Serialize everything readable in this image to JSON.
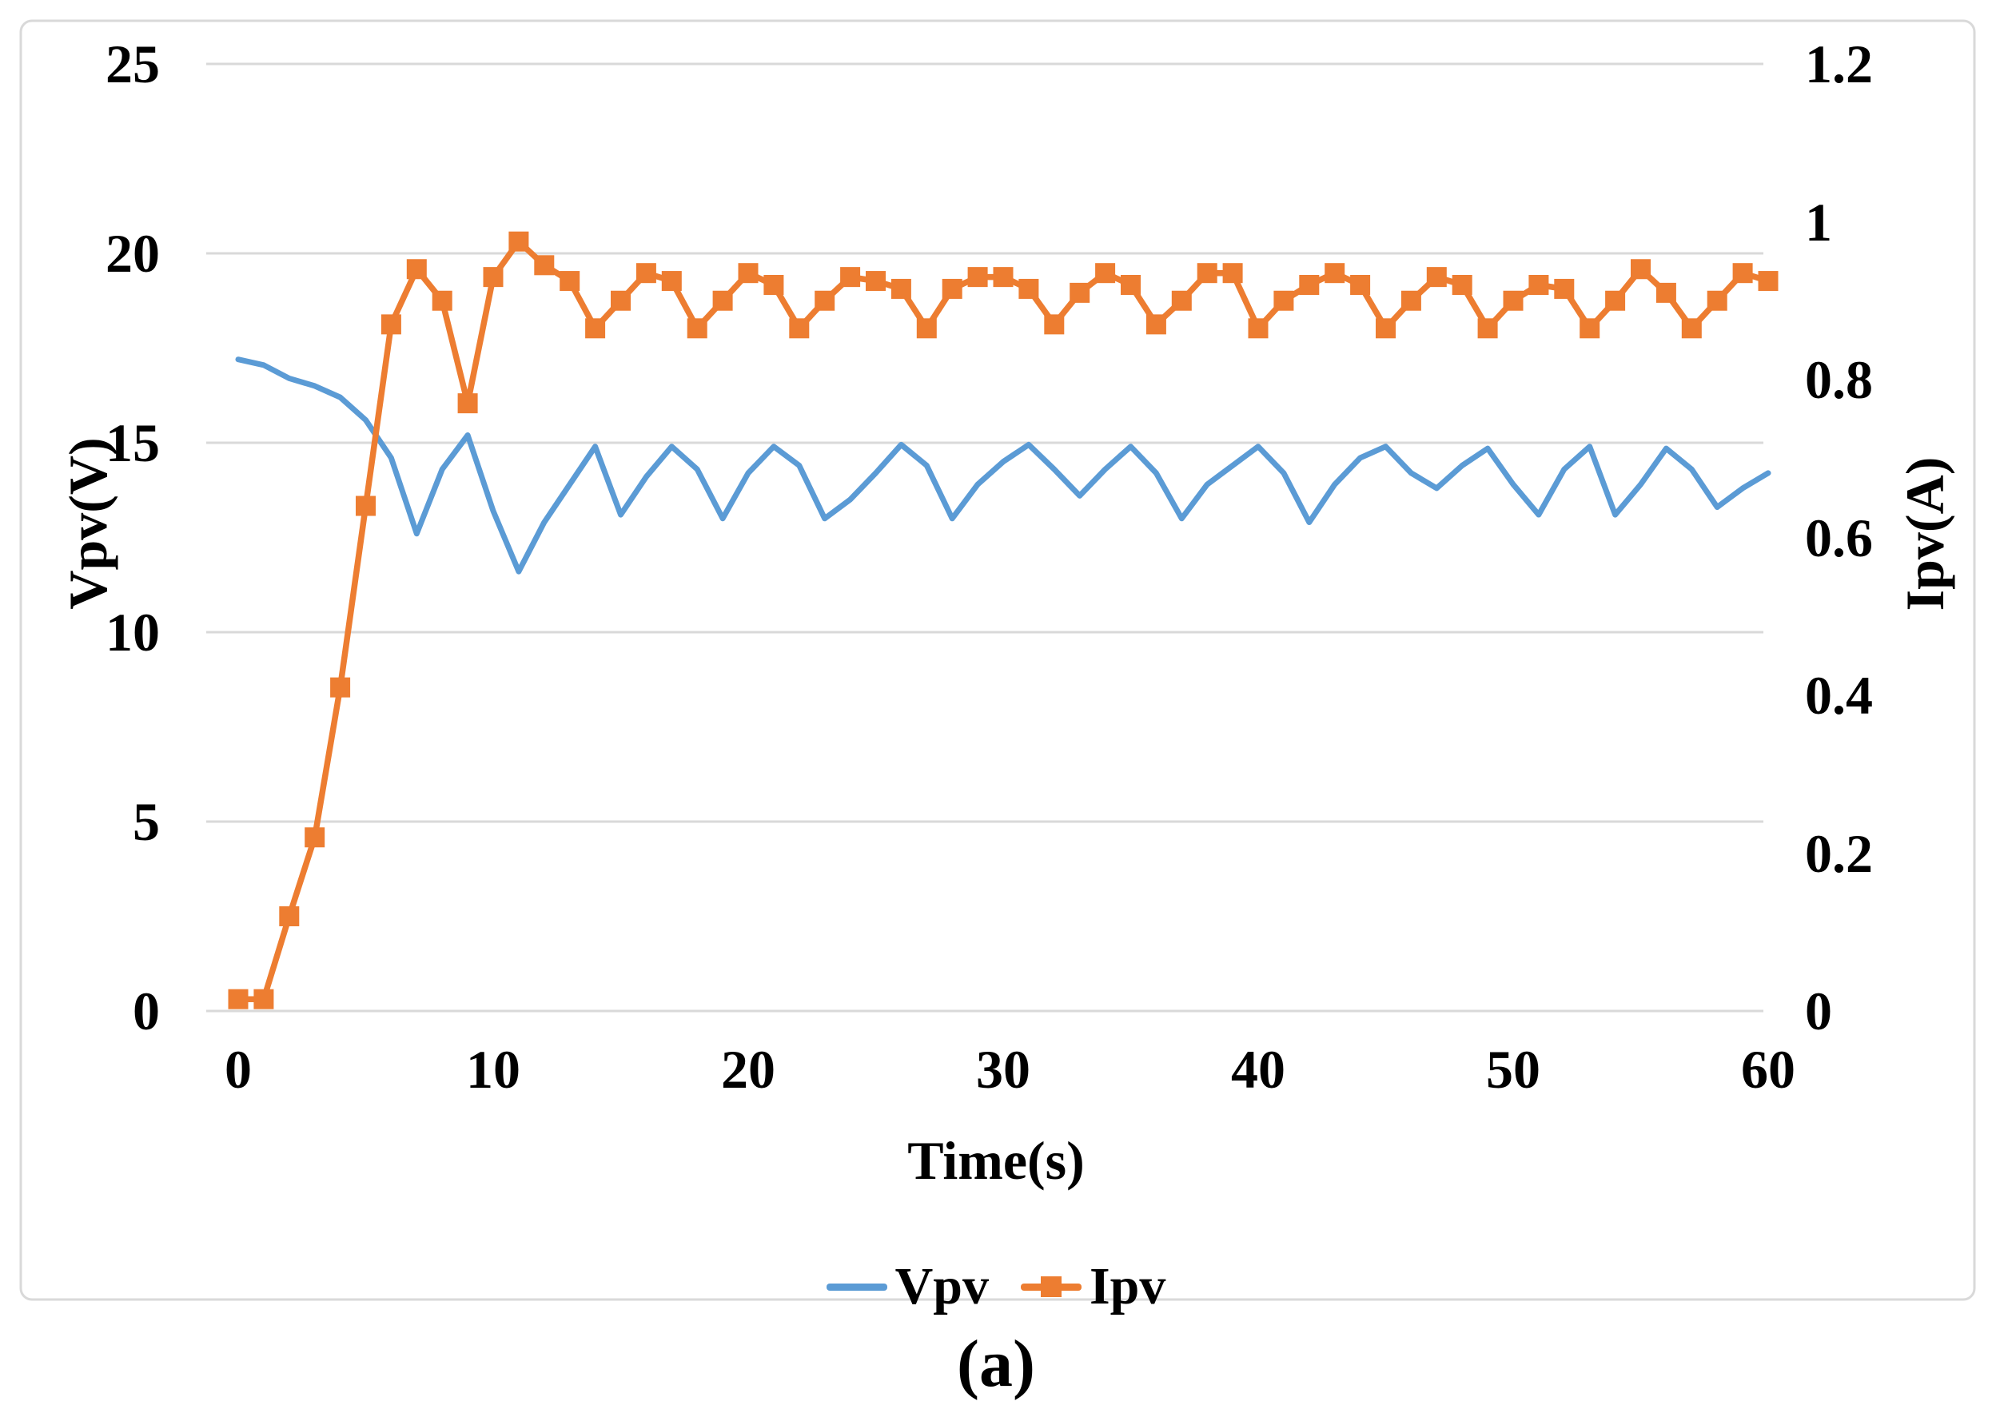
{
  "figure": {
    "caption": "(a)"
  },
  "chart": {
    "x_axis": {
      "title": "Time(s)",
      "ticks": [
        0,
        10,
        20,
        30,
        40,
        50,
        60
      ],
      "labels": [
        "0",
        "10",
        "20",
        "30",
        "40",
        "50",
        "60"
      ]
    },
    "y_left": {
      "title": "Vpv(V)",
      "ticks": [
        0,
        5,
        10,
        15,
        20,
        25
      ],
      "labels": [
        "0",
        "5",
        "10",
        "15",
        "20",
        "25"
      ]
    },
    "y_right": {
      "title": "Ipv(A)",
      "ticks": [
        0,
        0.2,
        0.4,
        0.6,
        0.8,
        1,
        1.2
      ],
      "labels": [
        "0",
        "0.2",
        "0.4",
        "0.6",
        "0.8",
        "1",
        "1.2"
      ]
    },
    "legend": [
      {
        "label": "Vpv",
        "color": "#5B9BD5",
        "marker": "line"
      },
      {
        "label": "Ipv",
        "color": "#ED7D31",
        "marker": "line-square"
      }
    ]
  },
  "colors": {
    "vpv": "#5B9BD5",
    "ipv": "#ED7D31",
    "grid": "#D9D9D9",
    "frame_border": "#D9D9D9",
    "text": "#000000",
    "background": "#FFFFFF"
  },
  "chart_data": {
    "type": "line",
    "title": "",
    "xlabel": "Time(s)",
    "ylabel_left": "Vpv(V)",
    "ylabel_right": "Ipv(A)",
    "xlim": [
      0,
      60
    ],
    "ylim_left": [
      0,
      25
    ],
    "ylim_right": [
      0,
      1.2
    ],
    "grid": "horizontal, at left-axis ticks (every 5 V)",
    "legend_position": "bottom",
    "x": [
      0,
      1,
      2,
      3,
      4,
      5,
      6,
      7,
      8,
      9,
      10,
      11,
      12,
      13,
      14,
      15,
      16,
      17,
      18,
      19,
      20,
      21,
      22,
      23,
      24,
      25,
      26,
      27,
      28,
      29,
      30,
      31,
      32,
      33,
      34,
      35,
      36,
      37,
      38,
      39,
      40,
      41,
      42,
      43,
      44,
      45,
      46,
      47,
      48,
      49,
      50,
      51,
      52,
      53,
      54,
      55,
      56,
      57,
      58,
      59,
      60
    ],
    "series": [
      {
        "name": "Vpv",
        "axis": "left",
        "color": "#5B9BD5",
        "marker": "none",
        "values": [
          17.2,
          17.05,
          16.7,
          16.5,
          16.2,
          15.6,
          14.6,
          12.6,
          14.3,
          15.2,
          13.2,
          11.6,
          12.9,
          13.9,
          14.9,
          13.1,
          14.1,
          14.9,
          14.3,
          13.0,
          14.2,
          14.9,
          14.4,
          13.0,
          13.5,
          14.2,
          14.95,
          14.4,
          13.0,
          13.9,
          14.5,
          14.95,
          14.3,
          13.6,
          14.3,
          14.9,
          14.2,
          13.0,
          13.9,
          14.4,
          14.9,
          14.2,
          12.9,
          13.9,
          14.6,
          14.9,
          14.2,
          13.8,
          14.4,
          14.85,
          13.9,
          13.1,
          14.3,
          14.9,
          13.1,
          13.9,
          14.85,
          14.3,
          13.3,
          13.8,
          14.2
        ]
      },
      {
        "name": "Ipv",
        "axis": "right",
        "color": "#ED7D31",
        "marker": "square",
        "values": [
          0.015,
          0.015,
          0.12,
          0.22,
          0.41,
          0.64,
          0.87,
          0.94,
          0.9,
          0.77,
          0.93,
          0.975,
          0.945,
          0.925,
          0.865,
          0.9,
          0.935,
          0.925,
          0.865,
          0.9,
          0.935,
          0.92,
          0.865,
          0.9,
          0.93,
          0.925,
          0.915,
          0.865,
          0.915,
          0.93,
          0.93,
          0.915,
          0.87,
          0.91,
          0.935,
          0.92,
          0.87,
          0.9,
          0.935,
          0.935,
          0.865,
          0.9,
          0.92,
          0.935,
          0.92,
          0.865,
          0.9,
          0.93,
          0.92,
          0.865,
          0.9,
          0.92,
          0.915,
          0.865,
          0.9,
          0.94,
          0.91,
          0.865,
          0.9,
          0.935,
          0.925
        ]
      }
    ]
  }
}
